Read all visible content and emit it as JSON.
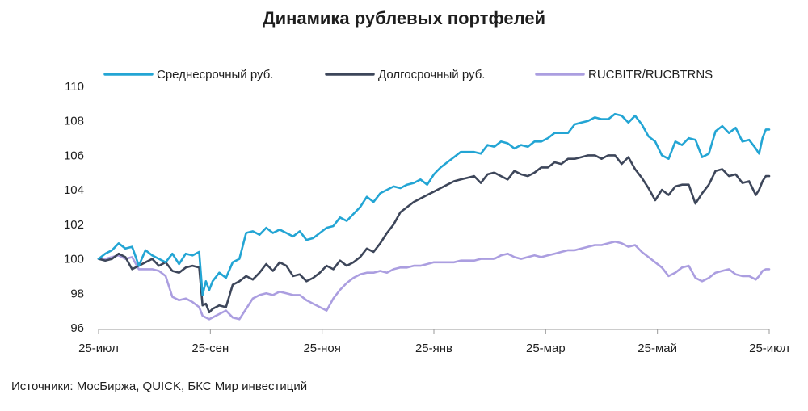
{
  "chart_data": {
    "type": "line",
    "title": "Динамика рублевых портфелей",
    "xlabel": "",
    "ylabel": "",
    "ylim": [
      96,
      110
    ],
    "yticks": [
      96,
      98,
      100,
      102,
      104,
      106,
      108,
      110
    ],
    "xticks": [
      "25-июл",
      "25-сен",
      "25-ноя",
      "25-янв",
      "25-мар",
      "25-май",
      "25-июл"
    ],
    "grid": false,
    "legend_position": "top",
    "series": [
      {
        "name": "Среднесрочный руб.",
        "color": "#23a5d4",
        "points": [
          [
            0,
            100.0
          ],
          [
            2,
            100.3
          ],
          [
            4,
            100.5
          ],
          [
            6,
            100.9
          ],
          [
            8,
            100.6
          ],
          [
            10,
            100.7
          ],
          [
            12,
            99.6
          ],
          [
            14,
            100.5
          ],
          [
            16,
            100.2
          ],
          [
            18,
            100.0
          ],
          [
            20,
            99.8
          ],
          [
            22,
            100.3
          ],
          [
            24,
            99.7
          ],
          [
            26,
            100.3
          ],
          [
            28,
            100.2
          ],
          [
            30,
            100.4
          ],
          [
            31,
            97.9
          ],
          [
            32,
            98.7
          ],
          [
            33,
            98.2
          ],
          [
            34,
            98.7
          ],
          [
            36,
            99.2
          ],
          [
            38,
            98.9
          ],
          [
            40,
            99.8
          ],
          [
            42,
            100.0
          ],
          [
            44,
            101.5
          ],
          [
            46,
            101.6
          ],
          [
            48,
            101.4
          ],
          [
            50,
            101.8
          ],
          [
            52,
            101.5
          ],
          [
            54,
            101.7
          ],
          [
            56,
            101.5
          ],
          [
            58,
            101.3
          ],
          [
            60,
            101.6
          ],
          [
            62,
            101.1
          ],
          [
            64,
            101.2
          ],
          [
            66,
            101.5
          ],
          [
            68,
            101.8
          ],
          [
            70,
            101.9
          ],
          [
            72,
            102.4
          ],
          [
            74,
            102.2
          ],
          [
            76,
            102.6
          ],
          [
            78,
            103.0
          ],
          [
            80,
            103.6
          ],
          [
            82,
            103.3
          ],
          [
            84,
            103.8
          ],
          [
            86,
            104.0
          ],
          [
            88,
            104.2
          ],
          [
            90,
            104.1
          ],
          [
            92,
            104.3
          ],
          [
            94,
            104.4
          ],
          [
            96,
            104.6
          ],
          [
            98,
            104.3
          ],
          [
            100,
            104.9
          ],
          [
            102,
            105.3
          ],
          [
            104,
            105.6
          ],
          [
            106,
            105.9
          ],
          [
            108,
            106.2
          ],
          [
            110,
            106.2
          ],
          [
            112,
            106.2
          ],
          [
            114,
            106.1
          ],
          [
            116,
            106.6
          ],
          [
            118,
            106.5
          ],
          [
            120,
            106.8
          ],
          [
            122,
            106.7
          ],
          [
            124,
            106.4
          ],
          [
            126,
            106.6
          ],
          [
            128,
            106.5
          ],
          [
            130,
            106.8
          ],
          [
            132,
            106.8
          ],
          [
            134,
            107.0
          ],
          [
            136,
            107.3
          ],
          [
            138,
            107.3
          ],
          [
            140,
            107.3
          ],
          [
            142,
            107.8
          ],
          [
            144,
            107.9
          ],
          [
            146,
            108.0
          ],
          [
            148,
            108.2
          ],
          [
            150,
            108.1
          ],
          [
            152,
            108.1
          ],
          [
            154,
            108.4
          ],
          [
            156,
            108.3
          ],
          [
            158,
            107.9
          ],
          [
            160,
            108.3
          ],
          [
            162,
            107.8
          ],
          [
            164,
            107.1
          ],
          [
            166,
            106.8
          ],
          [
            168,
            106.0
          ],
          [
            170,
            105.8
          ],
          [
            172,
            106.8
          ],
          [
            174,
            106.6
          ],
          [
            176,
            107.0
          ],
          [
            178,
            106.9
          ],
          [
            180,
            105.9
          ],
          [
            182,
            106.1
          ],
          [
            184,
            107.4
          ],
          [
            186,
            107.7
          ],
          [
            188,
            107.3
          ],
          [
            190,
            107.6
          ],
          [
            192,
            106.8
          ],
          [
            194,
            106.9
          ],
          [
            196,
            106.4
          ],
          [
            197,
            106.1
          ],
          [
            198,
            107.0
          ],
          [
            199,
            107.5
          ],
          [
            200,
            107.5
          ]
        ]
      },
      {
        "name": "Долгосрочный руб.",
        "color": "#3d465a",
        "points": [
          [
            0,
            100.0
          ],
          [
            2,
            99.9
          ],
          [
            4,
            100.0
          ],
          [
            6,
            100.3
          ],
          [
            8,
            100.1
          ],
          [
            10,
            99.4
          ],
          [
            12,
            99.6
          ],
          [
            14,
            99.8
          ],
          [
            16,
            100.0
          ],
          [
            18,
            99.6
          ],
          [
            20,
            99.8
          ],
          [
            22,
            99.3
          ],
          [
            24,
            99.2
          ],
          [
            26,
            99.5
          ],
          [
            28,
            99.6
          ],
          [
            30,
            99.5
          ],
          [
            31,
            97.3
          ],
          [
            32,
            97.4
          ],
          [
            33,
            96.9
          ],
          [
            34,
            97.1
          ],
          [
            36,
            97.3
          ],
          [
            38,
            97.2
          ],
          [
            40,
            98.5
          ],
          [
            42,
            98.7
          ],
          [
            44,
            99.0
          ],
          [
            46,
            98.8
          ],
          [
            48,
            99.2
          ],
          [
            50,
            99.7
          ],
          [
            52,
            99.3
          ],
          [
            54,
            99.8
          ],
          [
            56,
            99.6
          ],
          [
            58,
            99.0
          ],
          [
            60,
            99.1
          ],
          [
            62,
            98.7
          ],
          [
            64,
            98.9
          ],
          [
            66,
            99.2
          ],
          [
            68,
            99.6
          ],
          [
            70,
            99.4
          ],
          [
            72,
            99.9
          ],
          [
            74,
            99.6
          ],
          [
            76,
            99.8
          ],
          [
            78,
            100.1
          ],
          [
            80,
            100.6
          ],
          [
            82,
            100.4
          ],
          [
            84,
            100.9
          ],
          [
            86,
            101.5
          ],
          [
            88,
            102.0
          ],
          [
            90,
            102.7
          ],
          [
            92,
            103.0
          ],
          [
            94,
            103.3
          ],
          [
            96,
            103.5
          ],
          [
            98,
            103.7
          ],
          [
            100,
            103.9
          ],
          [
            102,
            104.1
          ],
          [
            104,
            104.3
          ],
          [
            106,
            104.5
          ],
          [
            108,
            104.6
          ],
          [
            110,
            104.7
          ],
          [
            112,
            104.8
          ],
          [
            114,
            104.4
          ],
          [
            116,
            104.9
          ],
          [
            118,
            105.0
          ],
          [
            120,
            104.8
          ],
          [
            122,
            104.6
          ],
          [
            124,
            105.1
          ],
          [
            126,
            104.9
          ],
          [
            128,
            104.8
          ],
          [
            130,
            105.0
          ],
          [
            132,
            105.3
          ],
          [
            134,
            105.3
          ],
          [
            136,
            105.6
          ],
          [
            138,
            105.5
          ],
          [
            140,
            105.8
          ],
          [
            142,
            105.8
          ],
          [
            144,
            105.9
          ],
          [
            146,
            106.0
          ],
          [
            148,
            106.0
          ],
          [
            150,
            105.8
          ],
          [
            152,
            106.0
          ],
          [
            154,
            106.0
          ],
          [
            156,
            105.5
          ],
          [
            158,
            105.9
          ],
          [
            160,
            105.2
          ],
          [
            162,
            104.7
          ],
          [
            164,
            104.1
          ],
          [
            166,
            103.4
          ],
          [
            168,
            104.0
          ],
          [
            170,
            103.7
          ],
          [
            172,
            104.2
          ],
          [
            174,
            104.3
          ],
          [
            176,
            104.3
          ],
          [
            178,
            103.2
          ],
          [
            180,
            103.8
          ],
          [
            182,
            104.3
          ],
          [
            184,
            105.1
          ],
          [
            186,
            105.2
          ],
          [
            188,
            104.8
          ],
          [
            190,
            104.9
          ],
          [
            192,
            104.4
          ],
          [
            194,
            104.5
          ],
          [
            196,
            103.7
          ],
          [
            197,
            104.0
          ],
          [
            198,
            104.5
          ],
          [
            199,
            104.8
          ],
          [
            200,
            104.8
          ]
        ]
      },
      {
        "name": "RUCBITR/RUCBTRNS",
        "color": "#ab9ee0",
        "points": [
          [
            0,
            100.0
          ],
          [
            2,
            100.0
          ],
          [
            4,
            100.1
          ],
          [
            6,
            100.2
          ],
          [
            8,
            100.0
          ],
          [
            10,
            100.1
          ],
          [
            12,
            99.4
          ],
          [
            14,
            99.4
          ],
          [
            16,
            99.4
          ],
          [
            18,
            99.3
          ],
          [
            20,
            99.0
          ],
          [
            22,
            97.8
          ],
          [
            24,
            97.6
          ],
          [
            26,
            97.7
          ],
          [
            28,
            97.5
          ],
          [
            30,
            97.2
          ],
          [
            31,
            96.7
          ],
          [
            32,
            96.6
          ],
          [
            33,
            96.5
          ],
          [
            34,
            96.6
          ],
          [
            36,
            96.8
          ],
          [
            38,
            97.0
          ],
          [
            40,
            96.6
          ],
          [
            42,
            96.5
          ],
          [
            44,
            97.1
          ],
          [
            46,
            97.7
          ],
          [
            48,
            97.9
          ],
          [
            50,
            98.0
          ],
          [
            52,
            97.9
          ],
          [
            54,
            98.1
          ],
          [
            56,
            98.0
          ],
          [
            58,
            97.9
          ],
          [
            60,
            97.9
          ],
          [
            62,
            97.6
          ],
          [
            64,
            97.4
          ],
          [
            66,
            97.2
          ],
          [
            68,
            97.0
          ],
          [
            70,
            97.7
          ],
          [
            72,
            98.2
          ],
          [
            74,
            98.6
          ],
          [
            76,
            98.9
          ],
          [
            78,
            99.1
          ],
          [
            80,
            99.2
          ],
          [
            82,
            99.2
          ],
          [
            84,
            99.3
          ],
          [
            86,
            99.2
          ],
          [
            88,
            99.4
          ],
          [
            90,
            99.5
          ],
          [
            92,
            99.5
          ],
          [
            94,
            99.6
          ],
          [
            96,
            99.6
          ],
          [
            98,
            99.7
          ],
          [
            100,
            99.8
          ],
          [
            102,
            99.8
          ],
          [
            104,
            99.8
          ],
          [
            106,
            99.8
          ],
          [
            108,
            99.9
          ],
          [
            110,
            99.9
          ],
          [
            112,
            99.9
          ],
          [
            114,
            100.0
          ],
          [
            116,
            100.0
          ],
          [
            118,
            100.0
          ],
          [
            120,
            100.2
          ],
          [
            122,
            100.3
          ],
          [
            124,
            100.1
          ],
          [
            126,
            100.0
          ],
          [
            128,
            100.1
          ],
          [
            130,
            100.2
          ],
          [
            132,
            100.1
          ],
          [
            134,
            100.2
          ],
          [
            136,
            100.3
          ],
          [
            138,
            100.4
          ],
          [
            140,
            100.5
          ],
          [
            142,
            100.5
          ],
          [
            144,
            100.6
          ],
          [
            146,
            100.7
          ],
          [
            148,
            100.8
          ],
          [
            150,
            100.8
          ],
          [
            152,
            100.9
          ],
          [
            154,
            101.0
          ],
          [
            156,
            100.9
          ],
          [
            158,
            100.7
          ],
          [
            160,
            100.8
          ],
          [
            162,
            100.4
          ],
          [
            164,
            100.1
          ],
          [
            166,
            99.8
          ],
          [
            168,
            99.5
          ],
          [
            170,
            99.0
          ],
          [
            172,
            99.2
          ],
          [
            174,
            99.5
          ],
          [
            176,
            99.6
          ],
          [
            178,
            98.9
          ],
          [
            180,
            98.7
          ],
          [
            182,
            98.9
          ],
          [
            184,
            99.2
          ],
          [
            186,
            99.3
          ],
          [
            188,
            99.4
          ],
          [
            190,
            99.1
          ],
          [
            192,
            99.0
          ],
          [
            194,
            99.0
          ],
          [
            196,
            98.8
          ],
          [
            197,
            99.0
          ],
          [
            198,
            99.3
          ],
          [
            199,
            99.4
          ],
          [
            200,
            99.4
          ]
        ]
      }
    ],
    "source": "Источники: МосБиржа, QUICK, БКС Мир инвестиций"
  }
}
